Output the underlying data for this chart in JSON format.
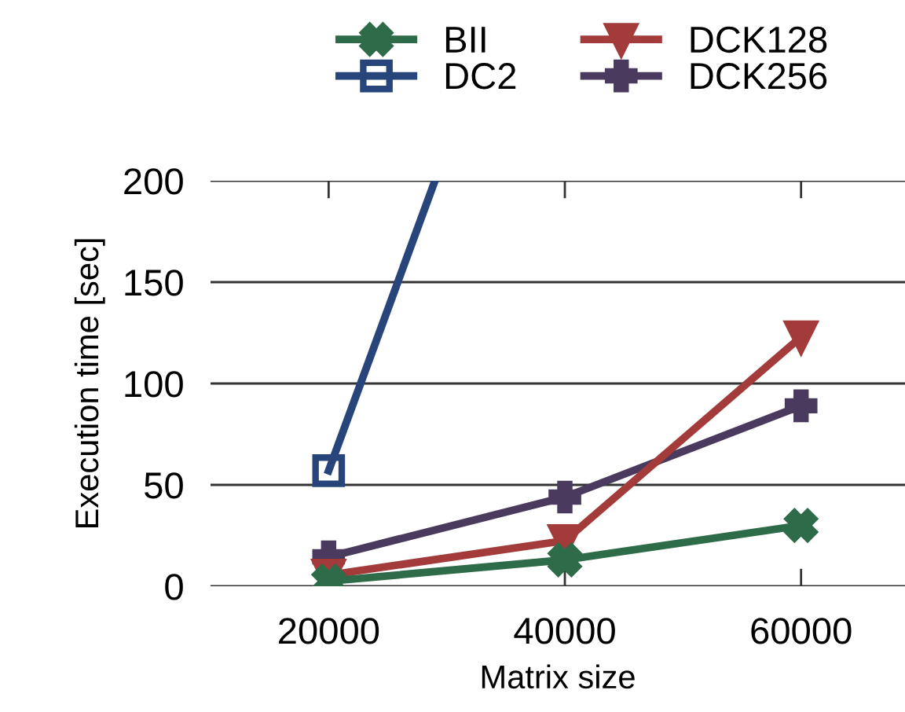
{
  "chart_data": {
    "type": "line",
    "xlabel": "Matrix size",
    "ylabel": "Execution time [sec]",
    "x": [
      20000,
      40000,
      60000
    ],
    "series": [
      {
        "name": "BII",
        "color": "#2e6b48",
        "marker": "cross",
        "values": [
          2.5,
          13,
          30
        ]
      },
      {
        "name": "DC2",
        "color": "#27457a",
        "marker": "square",
        "x": [
          20000,
          29000
        ],
        "values": [
          57,
          200
        ]
      },
      {
        "name": "DCK128",
        "color": "#a33b3b",
        "marker": "triangle",
        "values": [
          5.5,
          22.5,
          123
        ]
      },
      {
        "name": "DCK256",
        "color": "#4a3a5e",
        "marker": "plus",
        "values": [
          14.5,
          44,
          89
        ]
      }
    ],
    "xlim": [
      10000,
      68800
    ],
    "xticks": [
      20000,
      40000,
      60000
    ],
    "ylim": [
      0,
      200
    ],
    "yticks": [
      0,
      50,
      100,
      150,
      200
    ],
    "grid": "y",
    "legend": "top",
    "line_style": "solid"
  }
}
